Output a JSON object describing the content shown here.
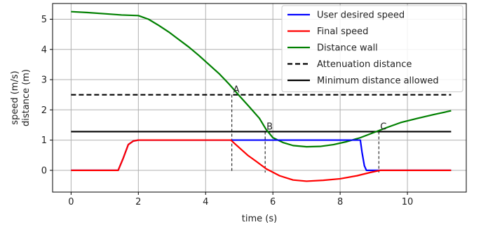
{
  "chart_data": {
    "type": "line",
    "xlabel": "time (s)",
    "ylabel_lines": [
      "speed (m/s)",
      "distance (m)"
    ],
    "xlim": [
      -0.55,
      11.75
    ],
    "ylim": [
      -0.72,
      5.52
    ],
    "xticks": [
      0,
      2,
      4,
      6,
      8,
      10
    ],
    "yticks": [
      0,
      1,
      2,
      3,
      4,
      5
    ],
    "grid": true,
    "legend_position": "top-right",
    "series": [
      {
        "name": "User desired speed",
        "color": "#0000ff",
        "style": "solid",
        "points": [
          [
            0,
            0
          ],
          [
            1.4,
            0
          ],
          [
            1.55,
            0.4
          ],
          [
            1.7,
            0.85
          ],
          [
            1.85,
            0.97
          ],
          [
            2.0,
            1.0
          ],
          [
            4.8,
            1.0
          ],
          [
            5.7,
            1.0
          ],
          [
            7.0,
            1.0
          ],
          [
            8.5,
            1.0
          ],
          [
            8.6,
            1.0
          ],
          [
            8.65,
            0.6
          ],
          [
            8.72,
            0.15
          ],
          [
            8.78,
            0
          ],
          [
            11.3,
            0
          ]
        ]
      },
      {
        "name": "Final speed",
        "color": "#ff0000",
        "style": "solid",
        "points": [
          [
            0,
            0
          ],
          [
            1.4,
            0
          ],
          [
            1.55,
            0.4
          ],
          [
            1.7,
            0.85
          ],
          [
            1.85,
            0.97
          ],
          [
            2.0,
            1.0
          ],
          [
            4.75,
            1.0
          ],
          [
            4.85,
            0.9
          ],
          [
            5.0,
            0.75
          ],
          [
            5.25,
            0.5
          ],
          [
            5.5,
            0.3
          ],
          [
            5.8,
            0.05
          ],
          [
            6.2,
            -0.18
          ],
          [
            6.6,
            -0.32
          ],
          [
            7.0,
            -0.36
          ],
          [
            7.5,
            -0.33
          ],
          [
            8.0,
            -0.28
          ],
          [
            8.5,
            -0.18
          ],
          [
            8.9,
            -0.07
          ],
          [
            9.2,
            0
          ],
          [
            11.3,
            0
          ]
        ]
      },
      {
        "name": "Distance wall",
        "color": "#008000",
        "style": "solid",
        "points": [
          [
            0,
            5.25
          ],
          [
            0.5,
            5.22
          ],
          [
            1.0,
            5.18
          ],
          [
            1.5,
            5.14
          ],
          [
            2.0,
            5.12
          ],
          [
            2.3,
            5.0
          ],
          [
            2.6,
            4.8
          ],
          [
            2.9,
            4.58
          ],
          [
            3.2,
            4.33
          ],
          [
            3.5,
            4.08
          ],
          [
            3.8,
            3.8
          ],
          [
            4.1,
            3.5
          ],
          [
            4.4,
            3.2
          ],
          [
            4.7,
            2.85
          ],
          [
            5.0,
            2.47
          ],
          [
            5.3,
            2.1
          ],
          [
            5.6,
            1.72
          ],
          [
            5.8,
            1.35
          ],
          [
            6.0,
            1.08
          ],
          [
            6.3,
            0.92
          ],
          [
            6.6,
            0.82
          ],
          [
            7.0,
            0.78
          ],
          [
            7.4,
            0.79
          ],
          [
            7.8,
            0.85
          ],
          [
            8.2,
            0.95
          ],
          [
            8.6,
            1.08
          ],
          [
            9.0,
            1.25
          ],
          [
            9.4,
            1.42
          ],
          [
            9.8,
            1.58
          ],
          [
            10.3,
            1.72
          ],
          [
            10.8,
            1.85
          ],
          [
            11.3,
            1.97
          ]
        ]
      },
      {
        "name": "Attenuation distance",
        "color": "#000000",
        "style": "dashed",
        "points": [
          [
            0,
            2.5
          ],
          [
            11.3,
            2.5
          ]
        ]
      },
      {
        "name": "Minimum distance allowed",
        "color": "#000000",
        "style": "solid",
        "points": [
          [
            0,
            1.28
          ],
          [
            11.3,
            1.28
          ]
        ]
      }
    ],
    "annotations": [
      {
        "label": "A",
        "x": 4.78,
        "y_top": 2.5
      },
      {
        "label": "B",
        "x": 5.77,
        "y_top": 1.28
      },
      {
        "label": "C",
        "x": 9.15,
        "y_top": 1.28
      }
    ]
  }
}
